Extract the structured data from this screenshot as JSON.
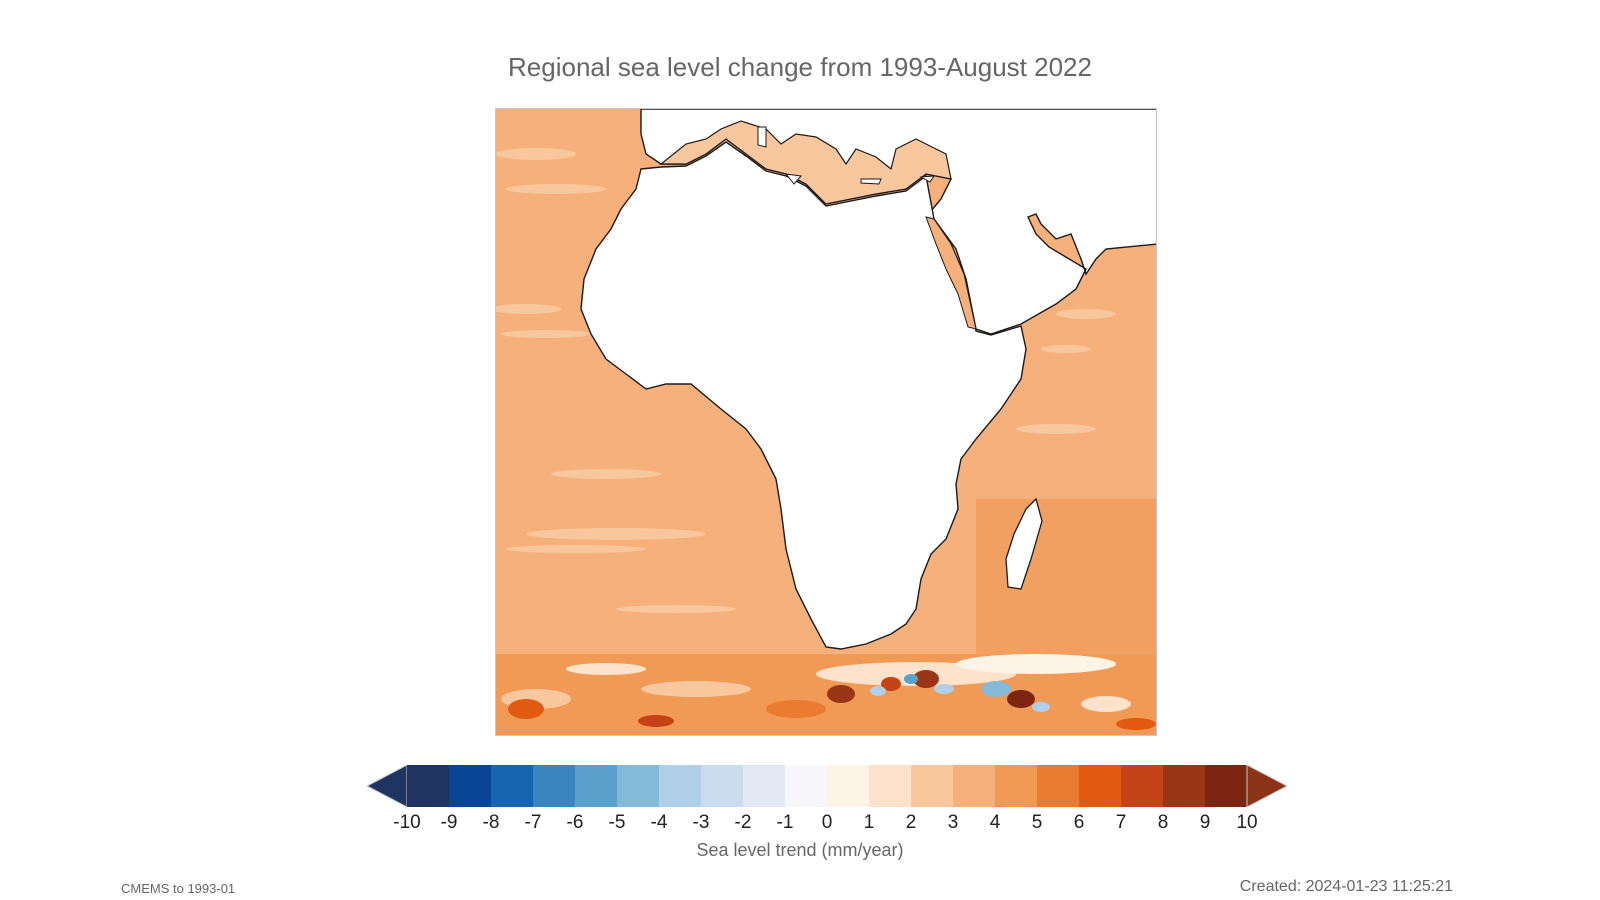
{
  "title": "Regional sea level change from 1993-August 2022",
  "colorbar": {
    "label": "Sea level trend (mm/year)",
    "ticks": [
      "-10",
      "-9",
      "-8",
      "-7",
      "-6",
      "-5",
      "-4",
      "-3",
      "-2",
      "-1",
      "0",
      "1",
      "2",
      "3",
      "4",
      "5",
      "6",
      "7",
      "8",
      "9",
      "10"
    ],
    "colors": [
      "#1f3461",
      "#084594",
      "#1565b0",
      "#3a84c0",
      "#5aa1cd",
      "#85b9d8",
      "#b0cfe8",
      "#cbdcef",
      "#e2e9f5",
      "#f6f6fb",
      "#fef4e6",
      "#fde3cc",
      "#f9c79d",
      "#f5b07c",
      "#f19a55",
      "#ec7b32",
      "#e05a12",
      "#c64317",
      "#9a3515",
      "#7c2612"
    ],
    "under_color": "#1f3461",
    "over_color": "#8b3316"
  },
  "map": {
    "region": "Africa and surrounding oceans",
    "land_color": "#ffffff",
    "coastline_color": "#1a1a1a",
    "ocean_base_color": "#f5b07c",
    "caspian_color": "#1f3461"
  },
  "footer": {
    "left": "CMEMS to 1993-01",
    "right": "Created: 2024-01-23 11:25:21"
  }
}
